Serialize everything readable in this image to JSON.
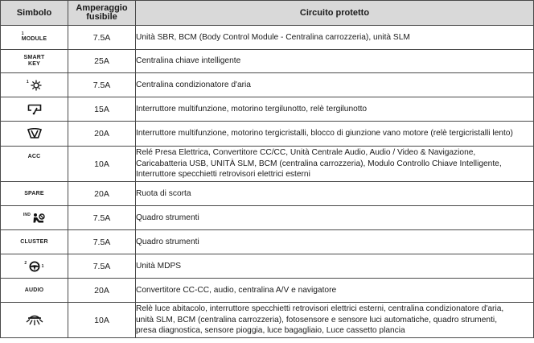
{
  "header": {
    "symbol": "Simbolo",
    "amperage_line1": "Amperaggio",
    "amperage_line2": "fusibile",
    "circuit": "Circuito protetto"
  },
  "rows": [
    {
      "symbol_sup": "1",
      "symbol": "MODULE",
      "amperage": "7.5A",
      "circuit": "Unità SBR, BCM (Body Control Module - Centralina carrozzeria), unità SLM"
    },
    {
      "symbol_line1": "SMART",
      "symbol_line2": "KEY",
      "amperage": "25A",
      "circuit": "Centralina chiave intelligente"
    },
    {
      "symbol_icon": "ac-heater-icon",
      "symbol_sup": "1",
      "amperage": "7.5A",
      "circuit": "Centralina condizionatore d'aria"
    },
    {
      "symbol_icon": "rear-wiper-icon",
      "amperage": "15A",
      "circuit": "Interruttore multifunzione, motorino tergilunotto, relè tergilunotto"
    },
    {
      "symbol_icon": "front-wiper-icon",
      "amperage": "20A",
      "circuit": "Interruttore multifunzione, motorino tergicristalli, blocco di giunzione vano motore (relè tergicristalli lento)"
    },
    {
      "symbol": "ACC",
      "amperage": "10A",
      "circuit_lines": [
        "Relé Presa Elettrica, Convertitore CC/CC, Unità Centrale Audio, Audio / Video & Navigazione,",
        "Caricabatteria USB, UNITÀ SLM, BCM (centralina carrozzeria), Modulo Controllo Chiave Intelligente,",
        "Interruttore specchietti retrovisori elettrici esterni"
      ]
    },
    {
      "symbol": "SPARE",
      "amperage": "20A",
      "circuit": "Ruota di scorta"
    },
    {
      "symbol_icon": "airbag-indicator-icon",
      "symbol_sup": "IND",
      "amperage": "7.5A",
      "circuit": "Quadro strumenti"
    },
    {
      "symbol": "CLUSTER",
      "amperage": "7.5A",
      "circuit": "Quadro strumenti"
    },
    {
      "symbol_icon": "steering-wheel-icon",
      "symbol_sup": "2",
      "symbol_sub": "1",
      "amperage": "7.5A",
      "circuit": "Unità MDPS"
    },
    {
      "symbol": "AUDIO",
      "amperage": "20A",
      "circuit": "Convertitore CC-CC, audio, centralina A/V e navigatore"
    },
    {
      "symbol_icon": "interior-lamp-icon",
      "amperage": "10A",
      "circuit_lines": [
        "Relè luce abitacolo, interruttore specchietti retrovisori elettrici esterni, centralina condizionatore d'aria,",
        "unità SLM, BCM (centralina carrozzeria), fotosensore e sensore luci automatiche, quadro strumenti,",
        "presa diagnostica, sensore pioggia, luce bagagliaio, Luce cassetto plancia"
      ]
    }
  ]
}
